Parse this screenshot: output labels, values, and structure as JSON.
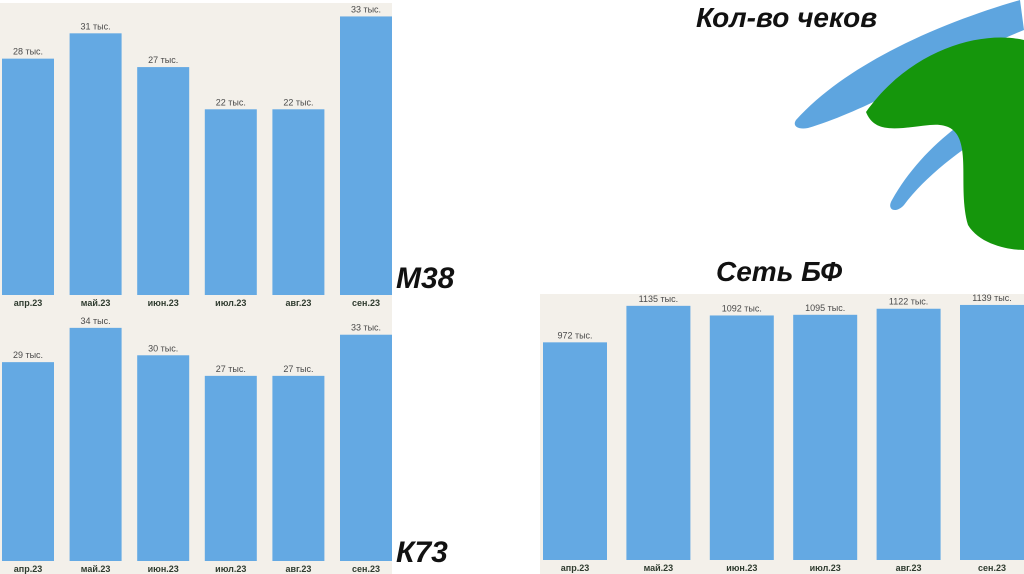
{
  "header": {
    "title": "Кол-во чеков"
  },
  "colors": {
    "bar": "#64a9e3",
    "panel_bg": "#f3f0ea",
    "leaf_green": "#15960c",
    "leaf_blue": "#5ea5df"
  },
  "chart_data": [
    {
      "type": "bar",
      "label": "М38",
      "categories": [
        "апр.23",
        "май.23",
        "июн.23",
        "июл.23",
        "авг.23",
        "сен.23"
      ],
      "values": [
        28,
        31,
        27,
        22,
        22,
        33
      ],
      "value_labels": [
        "28 тыс.",
        "31 тыс.",
        "27 тыс.",
        "22 тыс.",
        "22 тыс.",
        "33 тыс."
      ],
      "ylim": [
        0,
        34
      ]
    },
    {
      "type": "bar",
      "label": "К73",
      "categories": [
        "апр.23",
        "май.23",
        "июн.23",
        "июл.23",
        "авг.23",
        "сен.23"
      ],
      "values": [
        29,
        34,
        30,
        27,
        27,
        33
      ],
      "value_labels": [
        "29 тыс.",
        "34 тыс.",
        "30 тыс.",
        "27 тыс.",
        "27 тыс.",
        "33 тыс."
      ],
      "ylim": [
        0,
        35
      ]
    },
    {
      "type": "bar",
      "label": "Сеть БФ",
      "categories": [
        "апр.23",
        "май.23",
        "июн.23",
        "июл.23",
        "авг.23",
        "сен.23"
      ],
      "values": [
        972,
        1135,
        1092,
        1095,
        1122,
        1139
      ],
      "value_labels": [
        "972 тыс.",
        "1135 тыс.",
        "1092 тыс.",
        "1095 тыс.",
        "1122 тыс.",
        "1139 тыс."
      ],
      "ylim": [
        0,
        1170
      ]
    }
  ]
}
